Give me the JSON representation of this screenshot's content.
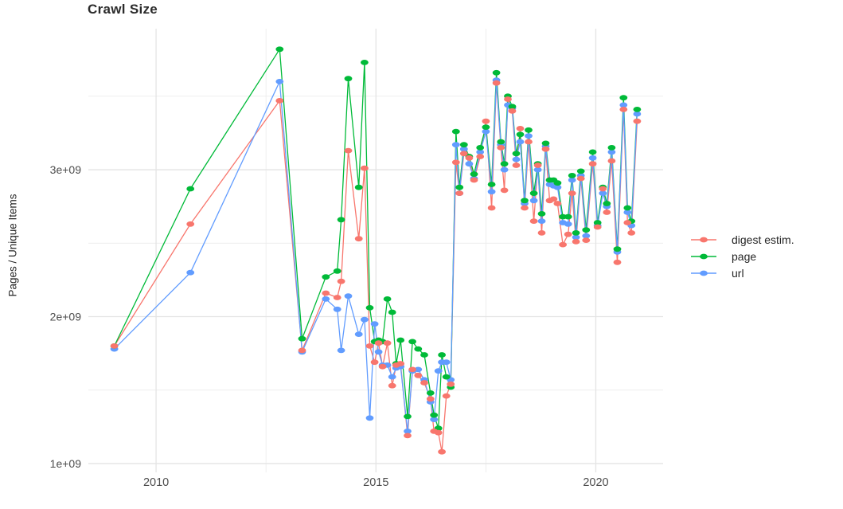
{
  "page": {
    "background": "#FFFFFF"
  },
  "chart_data": {
    "type": "line",
    "title": "Crawl Size",
    "xlabel": "",
    "ylabel": "Pages / Unique Items",
    "values_unit": "1e9",
    "grid": true,
    "legend_position": "right",
    "xlim": [
      2008.46,
      2021.53
    ],
    "ylim": [
      0.94,
      3.96
    ],
    "x_ticks": [
      {
        "label": "2010",
        "x": 2010
      },
      {
        "label": "2015",
        "x": 2015
      },
      {
        "label": "2020",
        "x": 2020
      }
    ],
    "x_minor_gridlines": [
      2012.5,
      2017.5
    ],
    "y_ticks": [
      {
        "label": "1e+09",
        "y": 1
      },
      {
        "label": "2e+09",
        "y": 2
      },
      {
        "label": "3e+09",
        "y": 3
      }
    ],
    "y_minor_gridlines": [
      1.5,
      2.5,
      3.5
    ],
    "gridline_color": "#E4E4E4",
    "minor_gridline_color": "#ECECEC",
    "axis_text_color": "#4D4D4D",
    "colors": {
      "digest": "#F8766D",
      "page": "#00BA38",
      "url": "#619CFF"
    },
    "series": [
      {
        "key": "digest",
        "name": "digest estim."
      },
      {
        "key": "page",
        "name": "page"
      },
      {
        "key": "url",
        "name": "url"
      }
    ],
    "points": [
      {
        "x": 2009.05,
        "digest": 1.8,
        "page": 1.8,
        "url": 1.78
      },
      {
        "x": 2010.78,
        "digest": 2.63,
        "page": 2.87,
        "url": 2.3
      },
      {
        "x": 2012.81,
        "digest": 3.47,
        "page": 3.82,
        "url": 3.6
      },
      {
        "x": 2013.32,
        "digest": 1.77,
        "page": 1.85,
        "url": 1.76
      },
      {
        "x": 2013.86,
        "digest": 2.16,
        "page": 2.27,
        "url": 2.12
      },
      {
        "x": 2014.12,
        "digest": 2.13,
        "page": 2.31,
        "url": 2.05
      },
      {
        "x": 2014.21,
        "digest": 2.24,
        "page": 2.66,
        "url": 1.77
      },
      {
        "x": 2014.37,
        "digest": 3.13,
        "page": 3.62,
        "url": 2.14
      },
      {
        "x": 2014.61,
        "digest": 2.53,
        "page": 2.88,
        "url": 1.88
      },
      {
        "x": 2014.74,
        "digest": 3.01,
        "page": 3.73,
        "url": 1.98
      },
      {
        "x": 2014.86,
        "digest": 1.8,
        "page": 2.06,
        "url": 1.31
      },
      {
        "x": 2014.97,
        "digest": 1.69,
        "page": 1.83,
        "url": 1.95
      },
      {
        "x": 2015.06,
        "digest": 1.82,
        "page": 1.84,
        "url": 1.76
      },
      {
        "x": 2015.15,
        "digest": 1.66,
        "page": 1.83,
        "url": 1.67
      },
      {
        "x": 2015.26,
        "digest": 1.82,
        "page": 2.12,
        "url": 1.67
      },
      {
        "x": 2015.37,
        "digest": 1.53,
        "page": 2.03,
        "url": 1.59
      },
      {
        "x": 2015.46,
        "digest": 1.67,
        "page": 1.68,
        "url": 1.65
      },
      {
        "x": 2015.56,
        "digest": 1.68,
        "page": 1.84,
        "url": 1.66
      },
      {
        "x": 2015.72,
        "digest": 1.19,
        "page": 1.32,
        "url": 1.22
      },
      {
        "x": 2015.83,
        "digest": 1.64,
        "page": 1.83,
        "url": 1.63
      },
      {
        "x": 2015.96,
        "digest": 1.6,
        "page": 1.78,
        "url": 1.64
      },
      {
        "x": 2016.1,
        "digest": 1.55,
        "page": 1.74,
        "url": 1.57
      },
      {
        "x": 2016.24,
        "digest": 1.44,
        "page": 1.48,
        "url": 1.42
      },
      {
        "x": 2016.32,
        "digest": 1.22,
        "page": 1.33,
        "url": 1.3
      },
      {
        "x": 2016.42,
        "digest": 1.21,
        "page": 1.24,
        "url": 1.63
      },
      {
        "x": 2016.5,
        "digest": 1.08,
        "page": 1.74,
        "url": 1.69
      },
      {
        "x": 2016.6,
        "digest": 1.46,
        "page": 1.59,
        "url": 1.69
      },
      {
        "x": 2016.7,
        "digest": 1.54,
        "page": 1.52,
        "url": 1.57
      },
      {
        "x": 2016.82,
        "digest": 3.05,
        "page": 3.26,
        "url": 3.17
      },
      {
        "x": 2016.9,
        "digest": 2.84,
        "page": 2.88,
        "url": 2.84
      },
      {
        "x": 2017.0,
        "digest": 3.11,
        "page": 3.17,
        "url": 3.14
      },
      {
        "x": 2017.12,
        "digest": 3.08,
        "page": 3.09,
        "url": 3.04
      },
      {
        "x": 2017.23,
        "digest": 2.93,
        "page": 2.97,
        "url": 2.94
      },
      {
        "x": 2017.37,
        "digest": 3.09,
        "page": 3.15,
        "url": 3.12
      },
      {
        "x": 2017.5,
        "digest": 3.33,
        "page": 3.29,
        "url": 3.26
      },
      {
        "x": 2017.63,
        "digest": 2.74,
        "page": 2.9,
        "url": 2.85
      },
      {
        "x": 2017.74,
        "digest": 3.59,
        "page": 3.66,
        "url": 3.61
      },
      {
        "x": 2017.84,
        "digest": 3.15,
        "page": 3.19,
        "url": 3.17
      },
      {
        "x": 2017.92,
        "digest": 2.86,
        "page": 3.04,
        "url": 3.0
      },
      {
        "x": 2018.0,
        "digest": 3.48,
        "page": 3.5,
        "url": 3.44
      },
      {
        "x": 2018.1,
        "digest": 3.4,
        "page": 3.43,
        "url": 3.42
      },
      {
        "x": 2018.19,
        "digest": 3.03,
        "page": 3.11,
        "url": 3.07
      },
      {
        "x": 2018.28,
        "digest": 3.28,
        "page": 3.24,
        "url": 3.19
      },
      {
        "x": 2018.38,
        "digest": 2.74,
        "page": 2.79,
        "url": 2.77
      },
      {
        "x": 2018.47,
        "digest": 3.19,
        "page": 3.27,
        "url": 3.23
      },
      {
        "x": 2018.59,
        "digest": 2.65,
        "page": 2.84,
        "url": 2.79
      },
      {
        "x": 2018.68,
        "digest": 3.03,
        "page": 3.04,
        "url": 3.0
      },
      {
        "x": 2018.77,
        "digest": 2.57,
        "page": 2.7,
        "url": 2.65
      },
      {
        "x": 2018.86,
        "digest": 3.14,
        "page": 3.18,
        "url": 3.16
      },
      {
        "x": 2018.95,
        "digest": 2.79,
        "page": 2.93,
        "url": 2.9
      },
      {
        "x": 2019.04,
        "digest": 2.8,
        "page": 2.93,
        "url": 2.89
      },
      {
        "x": 2019.13,
        "digest": 2.77,
        "page": 2.91,
        "url": 2.88
      },
      {
        "x": 2019.25,
        "digest": 2.49,
        "page": 2.68,
        "url": 2.64
      },
      {
        "x": 2019.37,
        "digest": 2.56,
        "page": 2.68,
        "url": 2.63
      },
      {
        "x": 2019.46,
        "digest": 2.84,
        "page": 2.96,
        "url": 2.93
      },
      {
        "x": 2019.55,
        "digest": 2.51,
        "page": 2.57,
        "url": 2.54
      },
      {
        "x": 2019.66,
        "digest": 2.94,
        "page": 2.99,
        "url": 2.96
      },
      {
        "x": 2019.78,
        "digest": 2.52,
        "page": 2.59,
        "url": 2.55
      },
      {
        "x": 2019.93,
        "digest": 3.04,
        "page": 3.12,
        "url": 3.08
      },
      {
        "x": 2020.04,
        "digest": 2.61,
        "page": 2.64,
        "url": 2.62
      },
      {
        "x": 2020.16,
        "digest": 2.87,
        "page": 2.88,
        "url": 2.84
      },
      {
        "x": 2020.25,
        "digest": 2.71,
        "page": 2.77,
        "url": 2.75
      },
      {
        "x": 2020.36,
        "digest": 3.06,
        "page": 3.15,
        "url": 3.12
      },
      {
        "x": 2020.49,
        "digest": 2.37,
        "page": 2.46,
        "url": 2.44
      },
      {
        "x": 2020.63,
        "digest": 3.41,
        "page": 3.49,
        "url": 3.44
      },
      {
        "x": 2020.72,
        "digest": 2.64,
        "page": 2.74,
        "url": 2.71
      },
      {
        "x": 2020.81,
        "digest": 2.57,
        "page": 2.65,
        "url": 2.62
      },
      {
        "x": 2020.94,
        "digest": 3.33,
        "page": 3.41,
        "url": 3.38
      }
    ]
  }
}
